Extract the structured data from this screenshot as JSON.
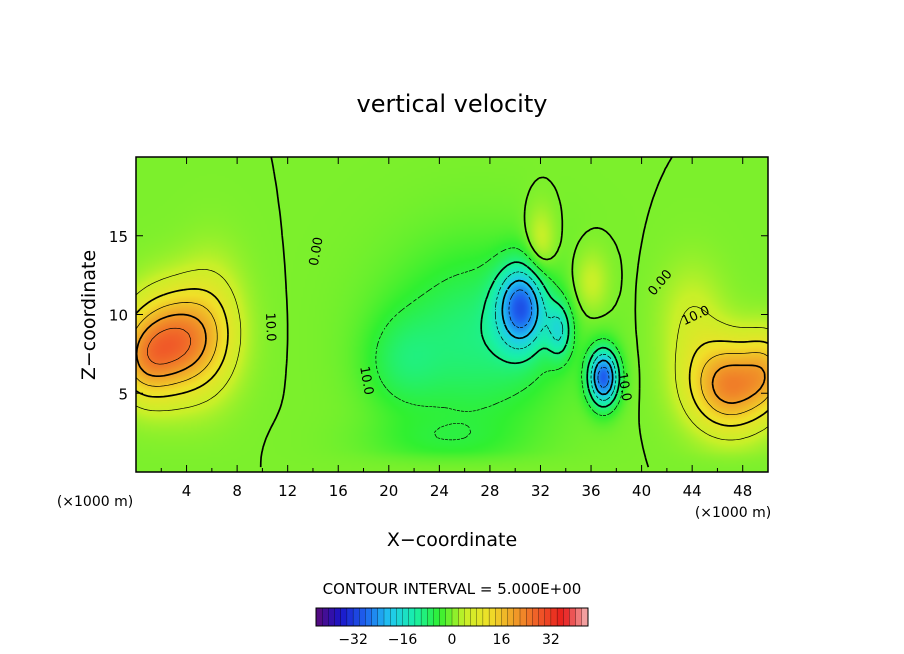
{
  "chart_data": {
    "type": "heatmap",
    "title": "vertical velocity",
    "xlabel": "X−coordinate",
    "ylabel": "Z−coordinate",
    "x_unit_left": "(×1000 m)",
    "x_unit_right": "(×1000 m)",
    "xlim": [
      0,
      50
    ],
    "ylim": [
      0,
      20
    ],
    "x_ticks": [
      4,
      8,
      12,
      16,
      20,
      24,
      28,
      32,
      36,
      40,
      44,
      48
    ],
    "x_tick_labels": [
      "4",
      "8",
      "12",
      "16",
      "20",
      "24",
      "28",
      "32",
      "36",
      "40",
      "44",
      "48"
    ],
    "y_ticks": [
      5,
      10,
      15
    ],
    "y_tick_labels": [
      "5",
      "10",
      "15"
    ],
    "contour_interval_label": "CONTOUR INTERVAL = 5.000E+00",
    "contour_interval": 5,
    "contour_labels": [
      {
        "text": "0.00",
        "x": 14.3,
        "z": 14.0,
        "rotate": -80
      },
      {
        "text": "10.0",
        "x": 10.6,
        "z": 9.2,
        "rotate": 88
      },
      {
        "text": "10.0",
        "x": 18.2,
        "z": 5.8,
        "rotate": 80
      },
      {
        "text": "0.00",
        "x": 41.5,
        "z": 12.0,
        "rotate": -50
      },
      {
        "text": "10.0",
        "x": 44.3,
        "z": 9.9,
        "rotate": -25
      },
      {
        "text": "10.0",
        "x": 38.6,
        "z": 5.4,
        "rotate": 80
      }
    ],
    "field_features": [
      {
        "kind": "updraft",
        "x": 3,
        "z": 8,
        "peak": 25
      },
      {
        "kind": "updraft",
        "x": 5.5,
        "z": 7,
        "peak": 18
      },
      {
        "kind": "updraft",
        "x": 47,
        "z": 5.3,
        "peak": 26
      },
      {
        "kind": "updraft",
        "x": 49.5,
        "z": 6,
        "peak": 24
      },
      {
        "kind": "downdraft",
        "x": 30.5,
        "z": 10.5,
        "peak": -26
      },
      {
        "kind": "downdraft",
        "x": 37,
        "z": 5.8,
        "peak": -28
      },
      {
        "kind": "downdraft",
        "x": 21,
        "z": 7,
        "peak": -10
      }
    ],
    "colorbar": {
      "min": -44,
      "max": 44,
      "ticks": [
        -32,
        -16,
        0,
        16,
        32
      ],
      "tick_labels": [
        "−32",
        "−16",
        "0",
        "16",
        "32"
      ],
      "colors": [
        "#5a0a78",
        "#1a14c8",
        "#1e64f0",
        "#20c8f0",
        "#18f0a8",
        "#30f030",
        "#c8f028",
        "#f0e028",
        "#f0a028",
        "#f05a28",
        "#e81c1c",
        "#f3b2b2"
      ]
    },
    "grid": false
  }
}
